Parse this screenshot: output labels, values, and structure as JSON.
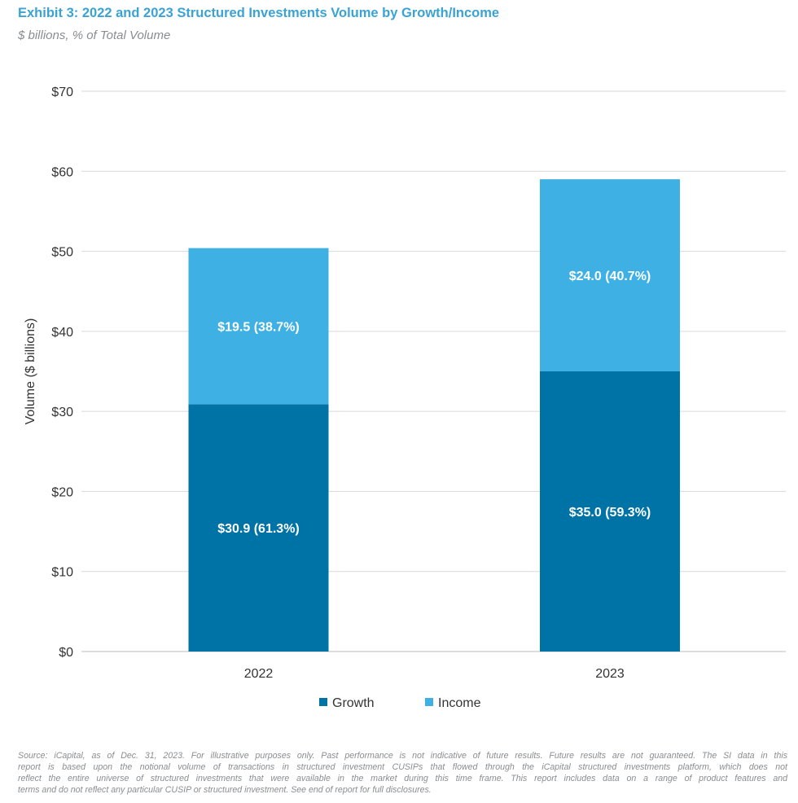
{
  "title": "Exhibit 3: 2022 and 2023 Structured Investments Volume by Growth/Income",
  "subtitle": "$ billions, % of Total Volume",
  "footnote_lines": [
    "Source: iCapital, as of Dec. 31, 2023. For illustrative purposes only. Past performance is not indicative of future results. Future results are not guaranteed. The SI data in this",
    "report is based upon the notional volume of transactions in structured investment CUSIPs that flowed through the iCapital structured investments platform, which does not",
    "reflect the entire universe of structured investments that were available in the market during this time frame. This report includes data on a range of product features and",
    "terms and do not reflect any particular CUSIP or structured investment. See end of report for full disclosures."
  ],
  "chart_data": {
    "type": "bar",
    "stacked": true,
    "categories": [
      "2022",
      "2023"
    ],
    "series": [
      {
        "name": "Growth",
        "values": [
          30.9,
          35.0
        ],
        "labels": [
          "$30.9 (61.3%)",
          "$35.0 (59.3%)"
        ],
        "color": "#0073a6"
      },
      {
        "name": "Income",
        "values": [
          19.5,
          24.0
        ],
        "labels": [
          "$19.5 (38.7%)",
          "$24.0 (40.7%)"
        ],
        "color": "#3fb0e3"
      }
    ],
    "ylabel": "Volume ($ billions)",
    "ylim": [
      0,
      70
    ],
    "yticks": [
      0,
      10,
      20,
      30,
      40,
      50,
      60,
      70
    ],
    "ytick_labels": [
      "$0",
      "$10",
      "$20",
      "$30",
      "$40",
      "$50",
      "$60",
      "$70"
    ],
    "grid": true,
    "legend": "bottom"
  }
}
